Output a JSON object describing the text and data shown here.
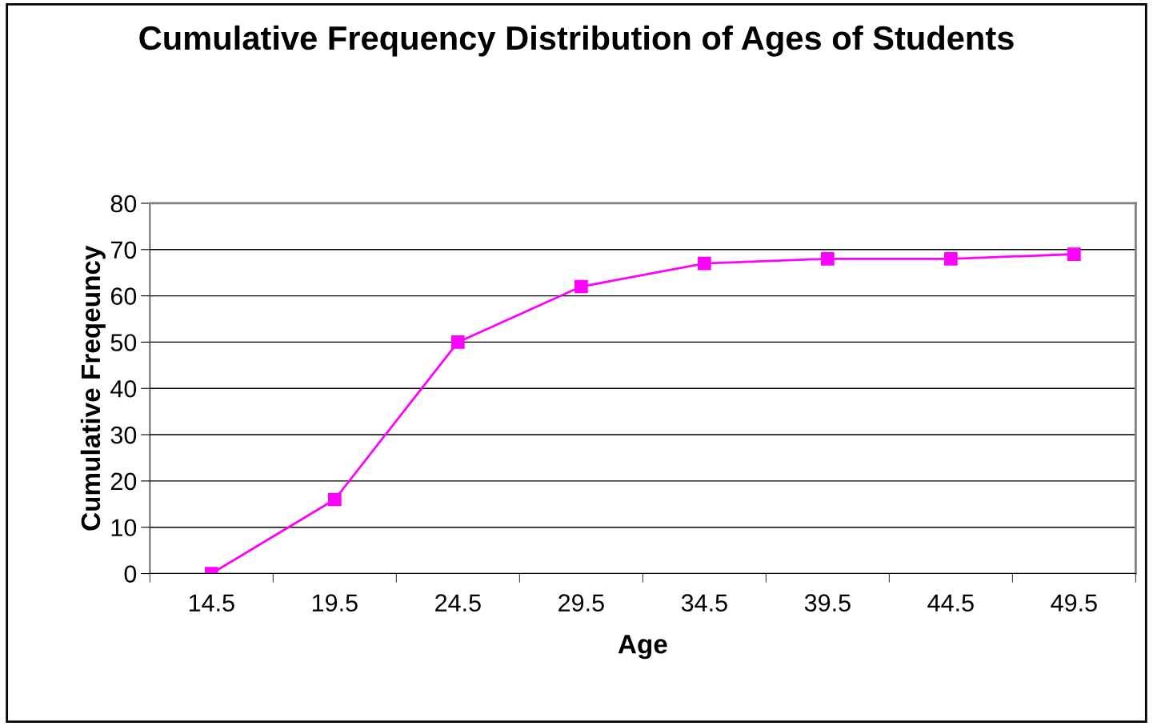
{
  "chart_data": {
    "type": "line",
    "title": "Cumulative Frequency Distribution of Ages of Students",
    "xlabel": "Age",
    "ylabel": "Cumulative Freqeuncy",
    "categories": [
      "14.5",
      "19.5",
      "24.5",
      "29.5",
      "34.5",
      "39.5",
      "44.5",
      "49.5"
    ],
    "series": [
      {
        "color": "#ff00ff",
        "values": [
          0,
          16,
          50,
          62,
          67,
          68,
          68,
          69
        ]
      }
    ],
    "ylim": [
      0,
      80
    ],
    "yticks": [
      0,
      10,
      20,
      30,
      40,
      50,
      60,
      70,
      80
    ],
    "grid": "y",
    "marker": "square",
    "line_style": "solid",
    "legend": false
  }
}
